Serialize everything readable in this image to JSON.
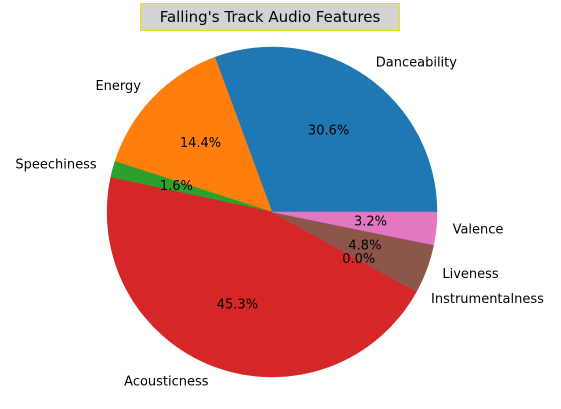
{
  "chart_data": {
    "type": "pie",
    "title": "Falling's Track Audio Features",
    "slices": [
      {
        "label": "Danceability",
        "value": 30.6,
        "pct_label": "30.6%",
        "color": "#1f77b4"
      },
      {
        "label": "Energy",
        "value": 14.4,
        "pct_label": "14.4%",
        "color": "#ff7f0e"
      },
      {
        "label": "Speechiness",
        "value": 1.6,
        "pct_label": "1.6%",
        "color": "#2ca02c"
      },
      {
        "label": "Acousticness",
        "value": 45.3,
        "pct_label": "45.3%",
        "color": "#d62728"
      },
      {
        "label": "Instrumentalness",
        "value": 0.0,
        "pct_label": "0.0%",
        "color": "#9467bd"
      },
      {
        "label": "Liveness",
        "value": 4.8,
        "pct_label": "4.8%",
        "color": "#8c564b"
      },
      {
        "label": "Valence",
        "value": 3.2,
        "pct_label": "3.2%",
        "color": "#e377c2"
      }
    ],
    "start_angle_deg": 0,
    "direction": "counterclockwise"
  }
}
